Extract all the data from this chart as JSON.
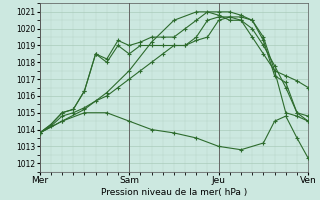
{
  "xlabel": "Pression niveau de la mer( hPa )",
  "ylim": [
    1011.5,
    1021.5
  ],
  "yticks": [
    1012,
    1013,
    1014,
    1015,
    1016,
    1017,
    1018,
    1019,
    1020,
    1021
  ],
  "xlim": [
    0,
    12
  ],
  "xtick_positions": [
    0,
    4,
    8,
    12
  ],
  "xtick_labels": [
    "Mer",
    "Sam",
    "Jeu",
    "Ven"
  ],
  "vline_positions": [
    0,
    4,
    8,
    12
  ],
  "background_color": "#cce8e0",
  "grid_color": "#aaccbb",
  "vline_color": "#666666",
  "line_color": "#2d6b2d",
  "lines": [
    {
      "x": [
        0,
        0.5,
        1.0,
        1.5,
        2.0,
        2.5,
        3.0,
        3.5,
        4.0,
        4.5,
        5.0,
        5.5,
        6.0,
        6.5,
        7.0,
        7.5,
        8.0,
        8.5,
        9.0,
        9.5,
        10.0,
        10.5,
        11.0,
        11.5,
        12.0
      ],
      "y": [
        1013.8,
        1014.2,
        1014.8,
        1015.0,
        1015.3,
        1015.7,
        1016.0,
        1016.5,
        1017.0,
        1017.5,
        1018.0,
        1018.5,
        1019.0,
        1019.0,
        1019.3,
        1019.5,
        1020.5,
        1020.7,
        1020.7,
        1020.5,
        1019.5,
        1017.5,
        1017.2,
        1016.9,
        1016.5
      ]
    },
    {
      "x": [
        0,
        0.5,
        1.0,
        1.5,
        2.0,
        2.5,
        3.0,
        3.5,
        4.0,
        4.5,
        5.0,
        5.5,
        6.0,
        6.5,
        7.0,
        7.5,
        8.0,
        8.5,
        9.0,
        9.5,
        10.0,
        10.5,
        11.0,
        11.5,
        12.0
      ],
      "y": [
        1013.8,
        1014.3,
        1015.0,
        1015.2,
        1016.3,
        1018.5,
        1018.0,
        1019.0,
        1018.5,
        1019.0,
        1019.0,
        1019.0,
        1019.0,
        1019.0,
        1019.5,
        1020.5,
        1020.7,
        1020.7,
        1020.5,
        1019.5,
        1018.5,
        1017.5,
        1015.0,
        1014.8,
        1014.5
      ]
    },
    {
      "x": [
        0,
        0.5,
        1.0,
        1.5,
        2.0,
        2.5,
        3.0,
        3.5,
        4.0,
        4.5,
        5.0,
        5.5,
        6.0,
        6.5,
        7.0,
        7.5,
        8.0,
        8.5,
        9.0,
        9.5,
        10.0,
        10.5,
        11.0,
        11.5,
        12.0
      ],
      "y": [
        1013.8,
        1014.3,
        1015.0,
        1015.2,
        1016.3,
        1018.5,
        1018.2,
        1019.3,
        1019.0,
        1019.2,
        1019.5,
        1019.5,
        1019.5,
        1020.0,
        1020.5,
        1021.0,
        1020.8,
        1020.5,
        1020.5,
        1020.0,
        1019.0,
        1017.8,
        1016.5,
        1015.0,
        1014.5
      ]
    },
    {
      "x": [
        0,
        1.0,
        2.0,
        3.0,
        4.0,
        5.0,
        6.0,
        7.0,
        8.0,
        8.5,
        9.0,
        9.5,
        10.0,
        10.5,
        11.0,
        11.5,
        12.0
      ],
      "y": [
        1013.8,
        1014.5,
        1015.2,
        1016.2,
        1017.5,
        1019.2,
        1020.5,
        1021.0,
        1021.0,
        1021.0,
        1020.8,
        1020.5,
        1019.3,
        1017.2,
        1016.8,
        1015.0,
        1014.8
      ]
    },
    {
      "x": [
        0,
        1.0,
        2.0,
        3.0,
        4.0,
        5.0,
        6.0,
        7.0,
        8.0,
        9.0,
        10.0,
        10.5,
        11.0,
        11.5,
        12.0
      ],
      "y": [
        1013.8,
        1014.5,
        1015.0,
        1015.0,
        1014.5,
        1014.0,
        1013.8,
        1013.5,
        1013.0,
        1012.8,
        1013.2,
        1014.5,
        1014.8,
        1013.5,
        1012.3
      ]
    }
  ]
}
